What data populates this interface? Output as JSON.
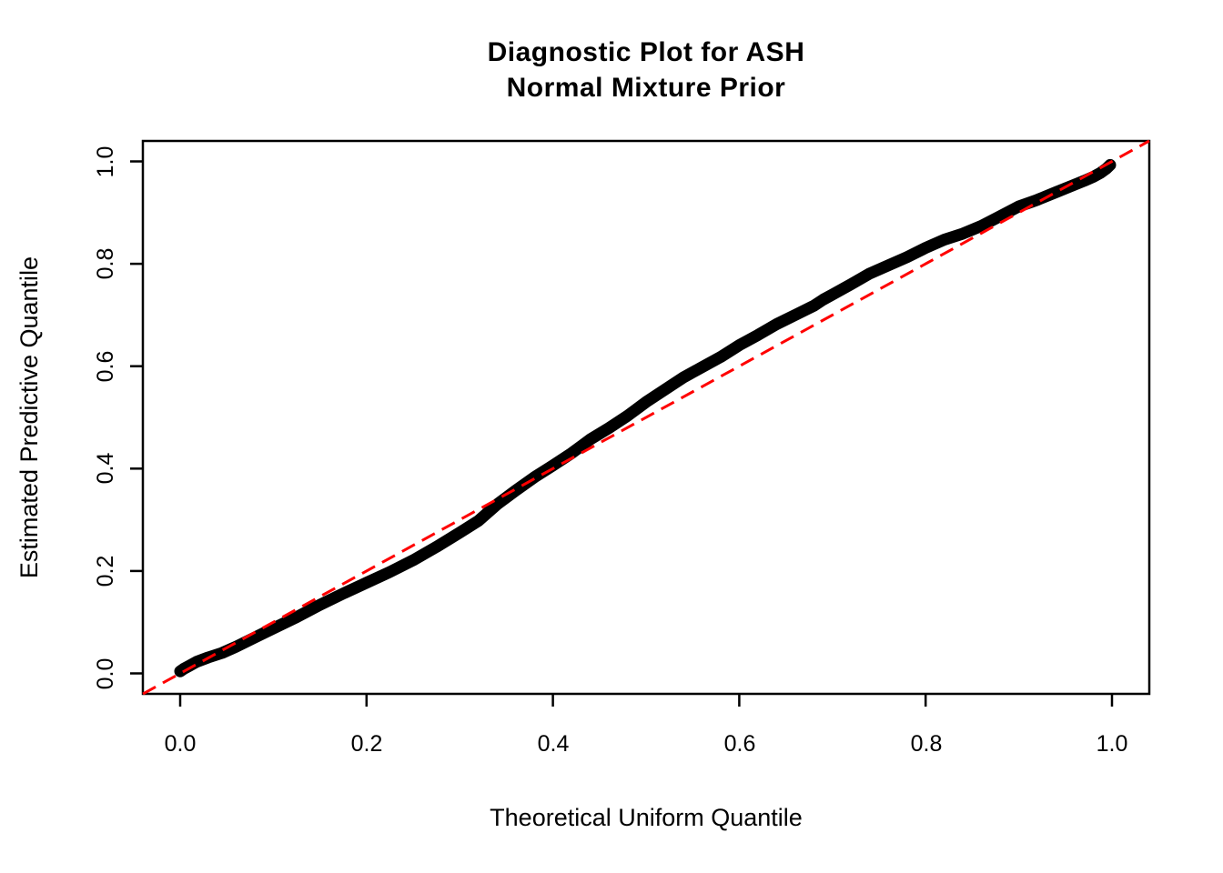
{
  "page": {
    "background": "#ffffff"
  },
  "chart_data": {
    "type": "line",
    "title_line1": "Diagnostic Plot for ASH",
    "title_line2": "Normal Mixture Prior",
    "xlabel": "Theoretical Uniform Quantile",
    "ylabel": "Estimated Predictive Quantile",
    "xlim": [
      -0.04,
      1.04
    ],
    "ylim": [
      -0.04,
      1.04
    ],
    "grid": false,
    "legend": "none",
    "x_ticks": [
      "0.0",
      "0.2",
      "0.4",
      "0.6",
      "0.8",
      "1.0"
    ],
    "y_ticks": [
      "0.0",
      "0.2",
      "0.4",
      "0.6",
      "0.8",
      "1.0"
    ],
    "x_tick_values": [
      0.0,
      0.2,
      0.4,
      0.6,
      0.8,
      1.0
    ],
    "y_tick_values": [
      0.0,
      0.2,
      0.4,
      0.6,
      0.8,
      1.0
    ],
    "colors": {
      "curve": "#000000",
      "reference_line": "#ff0000",
      "axis": "#000000"
    },
    "series": [
      {
        "name": "estimated-predictive-quantile-curve",
        "type": "line",
        "style": "solid-thick",
        "color": "#000000",
        "points": [
          [
            0.0,
            0.004
          ],
          [
            0.004,
            0.009
          ],
          [
            0.01,
            0.015
          ],
          [
            0.018,
            0.023
          ],
          [
            0.03,
            0.031
          ],
          [
            0.045,
            0.04
          ],
          [
            0.06,
            0.052
          ],
          [
            0.08,
            0.07
          ],
          [
            0.1,
            0.088
          ],
          [
            0.125,
            0.11
          ],
          [
            0.15,
            0.134
          ],
          [
            0.175,
            0.156
          ],
          [
            0.2,
            0.177
          ],
          [
            0.225,
            0.198
          ],
          [
            0.25,
            0.221
          ],
          [
            0.275,
            0.247
          ],
          [
            0.3,
            0.275
          ],
          [
            0.32,
            0.298
          ],
          [
            0.34,
            0.33
          ],
          [
            0.36,
            0.357
          ],
          [
            0.38,
            0.383
          ],
          [
            0.4,
            0.406
          ],
          [
            0.42,
            0.43
          ],
          [
            0.44,
            0.457
          ],
          [
            0.46,
            0.479
          ],
          [
            0.48,
            0.503
          ],
          [
            0.5,
            0.53
          ],
          [
            0.52,
            0.554
          ],
          [
            0.54,
            0.578
          ],
          [
            0.56,
            0.598
          ],
          [
            0.58,
            0.618
          ],
          [
            0.6,
            0.641
          ],
          [
            0.62,
            0.661
          ],
          [
            0.64,
            0.682
          ],
          [
            0.66,
            0.7
          ],
          [
            0.68,
            0.718
          ],
          [
            0.69,
            0.73
          ],
          [
            0.7,
            0.74
          ],
          [
            0.72,
            0.76
          ],
          [
            0.74,
            0.781
          ],
          [
            0.76,
            0.797
          ],
          [
            0.78,
            0.813
          ],
          [
            0.8,
            0.831
          ],
          [
            0.82,
            0.847
          ],
          [
            0.84,
            0.859
          ],
          [
            0.86,
            0.874
          ],
          [
            0.88,
            0.893
          ],
          [
            0.9,
            0.912
          ],
          [
            0.92,
            0.925
          ],
          [
            0.94,
            0.94
          ],
          [
            0.955,
            0.951
          ],
          [
            0.97,
            0.962
          ],
          [
            0.98,
            0.97
          ],
          [
            0.988,
            0.978
          ],
          [
            0.994,
            0.986
          ],
          [
            0.998,
            0.993
          ]
        ]
      },
      {
        "name": "identity-reference-line",
        "type": "line",
        "style": "dashed",
        "color": "#ff0000",
        "points": [
          [
            -0.04,
            -0.04
          ],
          [
            1.04,
            1.04
          ]
        ]
      }
    ]
  }
}
